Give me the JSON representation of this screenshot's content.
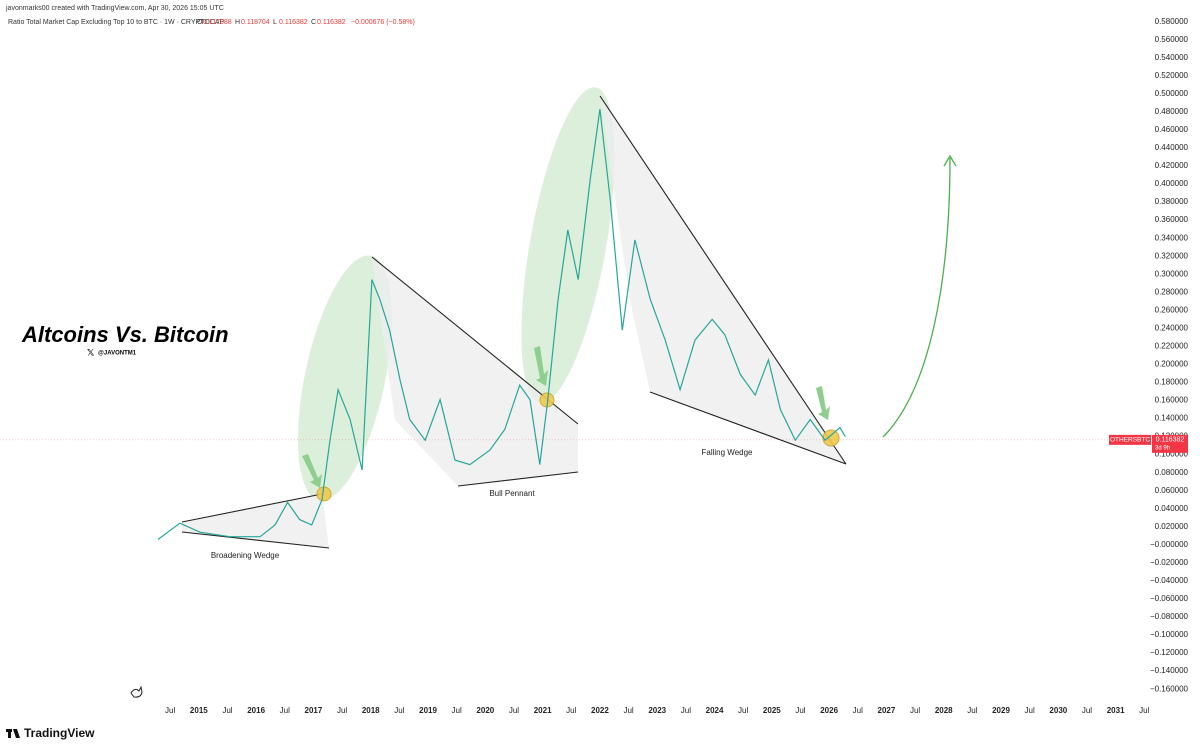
{
  "header": {
    "attribution": "javonmarks00 created with TradingView.com, Apr 30, 2026 15:05 UTC",
    "symbol_title": "Ratio Total Market Cap Excluding Top 10 to BTC · 1W · CRYPTOCAP",
    "ohlc": [
      {
        "key": "O",
        "value": 0.117088
      },
      {
        "key": "H",
        "value": 0.118704
      },
      {
        "key": "L",
        "value": 0.116382
      },
      {
        "key": "C",
        "value": 0.116382
      }
    ],
    "change": "−0.000676 (−0.58%)"
  },
  "chart_data": {
    "type": "line",
    "title": "Altcoins Vs. Bitcoin",
    "subtitle": "@JAVONTM1",
    "annotations": [
      "Broadening Wedge",
      "Bull Pennant",
      "Falling Wedge"
    ],
    "x": [
      2014.29,
      2014.67,
      2015.02,
      2015.54,
      2016.07,
      2016.33,
      2016.55,
      2016.76,
      2016.97,
      2017.15,
      2017.29,
      2017.43,
      2017.64,
      2017.85,
      2018.02,
      2018.16,
      2018.33,
      2018.51,
      2018.68,
      2018.95,
      2019.21,
      2019.47,
      2019.73,
      2020.08,
      2020.34,
      2020.6,
      2020.78,
      2020.95,
      2021.09,
      2021.27,
      2021.44,
      2021.62,
      2021.83,
      2022.0,
      2022.18,
      2022.39,
      2022.61,
      2022.88,
      2023.14,
      2023.4,
      2023.66,
      2023.96,
      2024.18,
      2024.45,
      2024.71,
      2024.94,
      2025.15,
      2025.41,
      2025.67,
      2025.93,
      2026.19,
      2026.28
    ],
    "series": [
      {
        "name": "OTHERSBTC",
        "color": "#26a69a",
        "values": [
          0.006,
          0.024,
          0.014,
          0.009,
          0.009,
          0.022,
          0.047,
          0.028,
          0.022,
          0.05,
          0.116,
          0.172,
          0.139,
          0.083,
          0.294,
          0.272,
          0.238,
          0.183,
          0.139,
          0.116,
          0.161,
          0.094,
          0.089,
          0.105,
          0.128,
          0.177,
          0.161,
          0.089,
          0.161,
          0.272,
          0.349,
          0.294,
          0.405,
          0.483,
          0.383,
          0.238,
          0.338,
          0.272,
          0.227,
          0.172,
          0.227,
          0.25,
          0.233,
          0.189,
          0.166,
          0.205,
          0.15,
          0.116,
          0.139,
          0.116,
          0.13,
          0.12
        ]
      }
    ],
    "last_price": 0.116382,
    "countdown": "3d 9h",
    "xlim": [
      2011.53,
      2031.6
    ],
    "ylim": [
      -0.172,
      0.604
    ],
    "xticks": [
      {
        "value": 2014.5,
        "label": "Jul"
      },
      2015,
      {
        "value": 2015.5,
        "label": "Jul"
      },
      2016,
      {
        "value": 2016.5,
        "label": "Jul"
      },
      2017,
      {
        "value": 2017.5,
        "label": "Jul"
      },
      2018,
      {
        "value": 2018.5,
        "label": "Jul"
      },
      2019,
      {
        "value": 2019.5,
        "label": "Jul"
      },
      2020,
      {
        "value": 2020.5,
        "label": "Jul"
      },
      2021,
      {
        "value": 2021.5,
        "label": "Jul"
      },
      2022,
      {
        "value": 2022.5,
        "label": "Jul"
      },
      2023,
      {
        "value": 2023.5,
        "label": "Jul"
      },
      2024,
      {
        "value": 2024.5,
        "label": "Jul"
      },
      2025,
      {
        "value": 2025.5,
        "label": "Jul"
      },
      2026,
      {
        "value": 2026.5,
        "label": "Jul"
      },
      2027,
      {
        "value": 2027.5,
        "label": "Jul"
      },
      2028,
      {
        "value": 2028.5,
        "label": "Jul"
      },
      2029,
      {
        "value": 2029.5,
        "label": "Jul"
      },
      2030,
      {
        "value": 2030.5,
        "label": "Jul"
      },
      2031,
      {
        "value": 2031.5,
        "label": "Jul"
      }
    ],
    "yticks": [
      {
        "value": 0.58,
        "label": "0.580000"
      },
      {
        "value": 0.56,
        "label": "0.560000"
      },
      {
        "value": 0.54,
        "label": "0.540000"
      },
      {
        "value": 0.52,
        "label": "0.520000"
      },
      {
        "value": 0.5,
        "label": "0.500000"
      },
      {
        "value": 0.48,
        "label": "0.480000"
      },
      {
        "value": 0.46,
        "label": "0.460000"
      },
      {
        "value": 0.44,
        "label": "0.440000"
      },
      {
        "value": 0.42,
        "label": "0.420000"
      },
      {
        "value": 0.4,
        "label": "0.400000"
      },
      {
        "value": 0.38,
        "label": "0.380000"
      },
      {
        "value": 0.36,
        "label": "0.360000"
      },
      {
        "value": 0.34,
        "label": "0.340000"
      },
      {
        "value": 0.32,
        "label": "0.320000"
      },
      {
        "value": 0.3,
        "label": "0.300000"
      },
      {
        "value": 0.28,
        "label": "0.280000"
      },
      {
        "value": 0.26,
        "label": "0.260000"
      },
      {
        "value": 0.24,
        "label": "0.240000"
      },
      {
        "value": 0.22,
        "label": "0.220000"
      },
      {
        "value": 0.2,
        "label": "0.200000"
      },
      {
        "value": 0.18,
        "label": "0.180000"
      },
      {
        "value": 0.16,
        "label": "0.160000"
      },
      {
        "value": 0.14,
        "label": "0.140000"
      },
      {
        "value": 0.12,
        "label": "0.120000"
      },
      {
        "value": 0.1,
        "label": "0.100000"
      },
      {
        "value": 0.08,
        "label": "0.080000"
      },
      {
        "value": 0.06,
        "label": "0.060000"
      },
      {
        "value": 0.04,
        "label": "0.040000"
      },
      {
        "value": 0.02,
        "label": "0.020000"
      },
      {
        "value": 0,
        "label": "−0.000000"
      },
      {
        "value": -0.02,
        "label": "−0.020000"
      },
      {
        "value": -0.04,
        "label": "−0.040000"
      },
      {
        "value": -0.06,
        "label": "−0.060000"
      },
      {
        "value": -0.08,
        "label": "−0.080000"
      },
      {
        "value": -0.1,
        "label": "−0.100000"
      },
      {
        "value": -0.12,
        "label": "−0.120000"
      },
      {
        "value": -0.14,
        "label": "−0.140000"
      },
      {
        "value": -0.16,
        "label": "−0.160000"
      }
    ]
  },
  "footer": {
    "brand": "TradingView"
  }
}
